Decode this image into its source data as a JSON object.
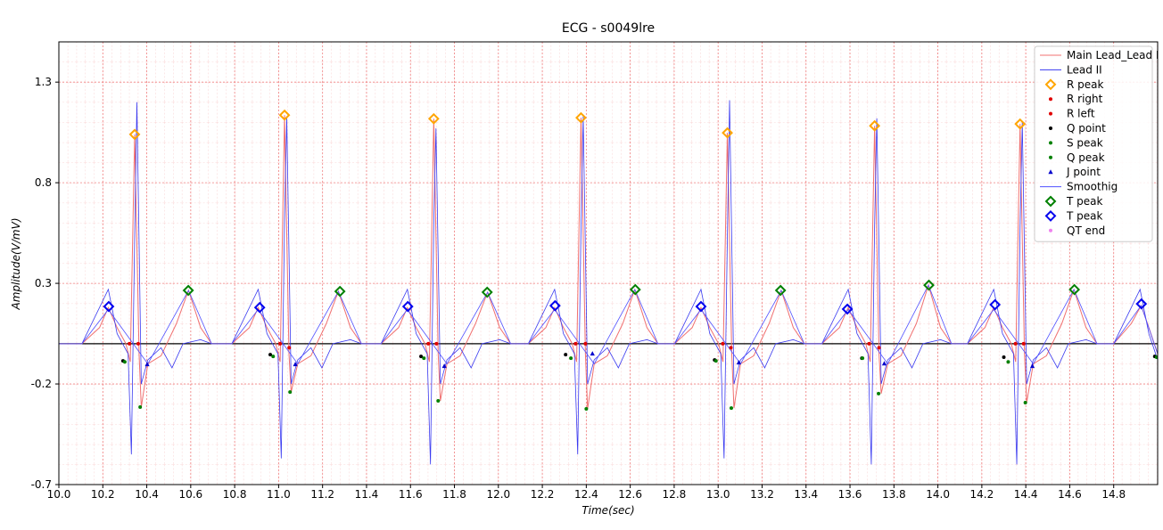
{
  "chart_data": {
    "type": "line",
    "title": "ECG - s0049lre",
    "x_label": "Time(sec)",
    "y_label": "Amplitude(V/mV)",
    "xlim": [
      10,
      15
    ],
    "ylim": [
      -0.7,
      1.5
    ],
    "xticks": [
      {
        "value": 10,
        "label": "10.0"
      },
      10.2,
      10.4,
      10.6,
      10.8,
      {
        "value": 11,
        "label": "11.0"
      },
      11.2,
      11.4,
      11.6,
      11.8,
      {
        "value": 12,
        "label": "12.0"
      },
      12.2,
      12.4,
      12.6,
      12.8,
      {
        "value": 13,
        "label": "13.0"
      },
      13.2,
      13.4,
      13.6,
      13.8,
      {
        "value": 14,
        "label": "14.0"
      },
      14.2,
      14.4,
      14.6,
      14.8
    ],
    "yticks": [
      -0.7,
      -0.2,
      0.3,
      0.8,
      1.3
    ],
    "grid": true,
    "hline": 0,
    "legend": "upper right",
    "series": [
      {
        "name": "Main Lead_Lead I",
        "color": "#f07070",
        "marker": "line",
        "x": [
          10.0,
          10.105,
          10.185,
          10.225,
          10.265,
          10.305,
          10.325,
          10.345,
          10.365,
          10.375,
          10.405,
          10.465,
          10.535,
          10.59,
          10.645,
          10.695,
          10.787,
          10.867,
          10.907,
          10.947,
          10.987,
          11.007,
          11.027,
          11.047,
          11.057,
          11.087,
          11.147,
          11.217,
          11.272,
          11.327,
          11.377,
          11.466,
          11.546,
          11.586,
          11.626,
          11.666,
          11.686,
          11.706,
          11.726,
          11.736,
          11.766,
          11.826,
          11.896,
          11.951,
          12.006,
          12.056,
          12.136,
          12.216,
          12.256,
          12.296,
          12.336,
          12.356,
          12.376,
          12.396,
          12.406,
          12.436,
          12.496,
          12.566,
          12.621,
          12.676,
          12.726,
          12.802,
          12.882,
          12.922,
          12.962,
          13.002,
          13.022,
          13.042,
          13.062,
          13.072,
          13.102,
          13.162,
          13.232,
          13.287,
          13.342,
          13.392,
          13.472,
          13.552,
          13.592,
          13.632,
          13.672,
          13.692,
          13.712,
          13.732,
          13.742,
          13.772,
          13.832,
          13.902,
          13.957,
          14.012,
          14.062,
          14.134,
          14.214,
          14.254,
          14.294,
          14.334,
          14.354,
          14.374,
          14.394,
          14.404,
          14.434,
          14.494,
          14.564,
          14.619,
          14.674,
          14.724,
          14.8,
          14.88,
          14.925,
          14.96,
          15.0
        ],
        "y": [
          0,
          0,
          0.08,
          0.18,
          0.08,
          0,
          -0.09,
          1.04,
          -0.05,
          -0.315,
          -0.1,
          -0.06,
          0.1,
          0.265,
          0.08,
          0,
          0,
          0.08,
          0.18,
          0.08,
          0,
          -0.09,
          1.136,
          -0.05,
          -0.24,
          -0.1,
          -0.06,
          0.1,
          0.26,
          0.08,
          0,
          0,
          0.08,
          0.18,
          0.08,
          0,
          -0.09,
          1.118,
          -0.05,
          -0.284,
          -0.1,
          -0.06,
          0.1,
          0.256,
          0.08,
          0,
          0,
          0.08,
          0.18,
          0.08,
          0,
          -0.09,
          1.123,
          -0.05,
          -0.324,
          -0.1,
          -0.06,
          0.1,
          0.269,
          0.08,
          0,
          0,
          0.08,
          0.18,
          0.08,
          0,
          -0.09,
          1.048,
          -0.05,
          -0.32,
          -0.1,
          -0.06,
          0.1,
          0.265,
          0.08,
          0,
          0,
          0.08,
          0.18,
          0.08,
          0,
          -0.09,
          1.083,
          -0.05,
          -0.248,
          -0.1,
          -0.06,
          0.1,
          0.291,
          0.08,
          0,
          0,
          0.08,
          0.18,
          0.08,
          0,
          -0.09,
          1.092,
          -0.05,
          -0.293,
          -0.1,
          -0.06,
          0.1,
          0.269,
          0.08,
          0,
          0,
          0.1,
          0.19,
          0.08,
          -0.05
        ]
      },
      {
        "name": "Lead II",
        "color": "#3a3af0",
        "marker": "line",
        "x": [
          10.0,
          10.105,
          10.225,
          10.265,
          10.315,
          10.33,
          10.345,
          10.355,
          10.375,
          10.405,
          10.465,
          10.515,
          10.565,
          10.645,
          10.695,
          10.787,
          10.907,
          10.947,
          10.997,
          11.012,
          11.027,
          11.037,
          11.057,
          11.087,
          11.147,
          11.197,
          11.247,
          11.327,
          11.377,
          11.466,
          11.586,
          11.626,
          11.676,
          11.691,
          11.706,
          11.716,
          11.736,
          11.766,
          11.826,
          11.876,
          11.926,
          12.006,
          12.056,
          12.136,
          12.256,
          12.296,
          12.346,
          12.361,
          12.376,
          12.386,
          12.406,
          12.436,
          12.496,
          12.546,
          12.596,
          12.676,
          12.726,
          12.802,
          12.922,
          12.962,
          13.012,
          13.027,
          13.042,
          13.052,
          13.072,
          13.102,
          13.162,
          13.212,
          13.262,
          13.342,
          13.392,
          13.472,
          13.592,
          13.632,
          13.682,
          13.697,
          13.712,
          13.722,
          13.742,
          13.772,
          13.832,
          13.882,
          13.932,
          14.012,
          14.062,
          14.134,
          14.254,
          14.294,
          14.344,
          14.359,
          14.374,
          14.384,
          14.404,
          14.434,
          14.494,
          14.544,
          14.594,
          14.674,
          14.724,
          14.8,
          14.92,
          14.96,
          15.0
        ],
        "y": [
          0,
          0,
          0.27,
          0.05,
          -0.05,
          -0.55,
          0.53,
          1.2,
          -0.2,
          -0.08,
          -0.02,
          -0.12,
          0,
          0.02,
          0,
          0,
          0.27,
          0.05,
          -0.05,
          -0.57,
          0.62,
          1.12,
          -0.2,
          -0.08,
          -0.02,
          -0.12,
          0,
          0.02,
          0,
          0,
          0.27,
          0.05,
          -0.05,
          -0.6,
          0.6,
          1.07,
          -0.2,
          -0.08,
          -0.02,
          -0.12,
          0,
          0.02,
          0,
          0,
          0.27,
          0.05,
          -0.05,
          -0.55,
          0.58,
          1.13,
          -0.2,
          -0.08,
          -0.02,
          -0.12,
          0,
          0.02,
          0,
          0,
          0.27,
          0.05,
          -0.05,
          -0.57,
          0.53,
          1.21,
          -0.2,
          -0.08,
          -0.02,
          -0.12,
          0,
          0.02,
          0,
          0,
          0.27,
          0.05,
          -0.05,
          -0.6,
          0.58,
          1.12,
          -0.2,
          -0.08,
          -0.02,
          -0.12,
          0,
          0.02,
          0,
          0,
          0.27,
          0.05,
          -0.05,
          -0.6,
          0.58,
          1.1,
          -0.2,
          -0.08,
          -0.02,
          -0.12,
          0,
          0.02,
          0,
          0,
          0.27,
          0.05,
          -0.08
        ]
      },
      {
        "name": "R peak",
        "color": "#ffa500",
        "marker": "diamond",
        "x": [
          10.345,
          11.027,
          11.706,
          12.376,
          13.042,
          13.712,
          14.374
        ],
        "y": [
          1.04,
          1.136,
          1.118,
          1.123,
          1.048,
          1.083,
          1.092
        ]
      },
      {
        "name": "R right",
        "color": "#e00000",
        "marker": "dot",
        "x": [
          10.361,
          11.048,
          11.718,
          12.396,
          13.058,
          13.732,
          14.39
        ],
        "y": [
          0,
          -0.02,
          0,
          0,
          -0.02,
          -0.02,
          0
        ]
      },
      {
        "name": "R left",
        "color": "#e00000",
        "marker": "dot",
        "x": [
          10.321,
          11.007,
          11.681,
          12.351,
          13.021,
          13.687,
          14.353
        ],
        "y": [
          0,
          0,
          0,
          0,
          0,
          0,
          0
        ]
      },
      {
        "name": "Q point",
        "color": "#000000",
        "marker": "dot",
        "x": [
          10.292,
          10.962,
          11.648,
          12.306,
          12.984,
          13.654,
          14.3,
          14.987
        ],
        "y": [
          -0.085,
          -0.054,
          -0.063,
          -0.054,
          -0.081,
          -0.072,
          -0.067,
          -0.063
        ]
      },
      {
        "name": "S peak",
        "color": "#008000",
        "marker": "dot",
        "x": [
          10.37,
          11.052,
          11.726,
          12.4,
          13.06,
          13.73,
          14.398
        ],
        "y": [
          -0.315,
          -0.24,
          -0.284,
          -0.324,
          -0.32,
          -0.248,
          -0.293
        ]
      },
      {
        "name": "Q peak",
        "color": "#008000",
        "marker": "dot",
        "x": [
          10.3,
          10.975,
          11.661,
          12.33,
          12.99,
          13.657,
          14.32,
          14.995
        ],
        "y": [
          -0.09,
          -0.063,
          -0.072,
          -0.072,
          -0.085,
          -0.072,
          -0.09,
          -0.067
        ]
      },
      {
        "name": "J point",
        "color": "#0000cc",
        "marker": "triangle",
        "x": [
          10.402,
          11.076,
          11.754,
          12.428,
          13.094,
          13.756,
          14.43
        ],
        "y": [
          -0.103,
          -0.103,
          -0.112,
          -0.05,
          -0.094,
          -0.099,
          -0.112
        ]
      },
      {
        "name": "Smoothig",
        "color": "#5050ff",
        "marker": "line",
        "x": [
          10.0,
          10.105,
          10.225,
          10.405,
          10.59,
          10.695,
          10.787,
          10.907,
          11.087,
          11.272,
          11.377,
          11.466,
          11.586,
          11.766,
          11.951,
          12.056,
          12.136,
          12.256,
          12.436,
          12.621,
          12.726,
          12.802,
          12.922,
          13.102,
          13.287,
          13.392,
          13.472,
          13.592,
          13.772,
          13.957,
          14.062,
          14.134,
          14.254,
          14.434,
          14.619,
          14.724,
          14.8,
          14.925,
          15.0
        ],
        "y": [
          0,
          0,
          0.17,
          -0.1,
          0.265,
          0,
          0,
          0.17,
          -0.1,
          0.26,
          0,
          0,
          0.17,
          -0.1,
          0.256,
          0,
          0,
          0.17,
          -0.1,
          0.269,
          0,
          0,
          0.17,
          -0.1,
          0.265,
          0,
          0,
          0.17,
          -0.1,
          0.291,
          0,
          0,
          0.17,
          -0.1,
          0.269,
          0,
          0,
          0.19,
          -0.05
        ]
      },
      {
        "name": "T peak",
        "color": "#008000",
        "marker": "diamond",
        "x": [
          10.589,
          11.279,
          11.949,
          12.623,
          13.284,
          13.959,
          14.621
        ],
        "y": [
          0.265,
          0.26,
          0.256,
          0.269,
          0.265,
          0.291,
          0.269
        ]
      },
      {
        "name": "T peak",
        "color": "#0000ee",
        "marker": "diamond",
        "x": [
          10.227,
          10.914,
          11.588,
          12.258,
          12.922,
          13.588,
          14.26,
          14.926
        ],
        "y": [
          0.185,
          0.18,
          0.185,
          0.189,
          0.185,
          0.172,
          0.194,
          0.198
        ]
      },
      {
        "name": "QT end",
        "color": "#ee82ee",
        "marker": "dot",
        "x": [],
        "y": []
      }
    ]
  }
}
